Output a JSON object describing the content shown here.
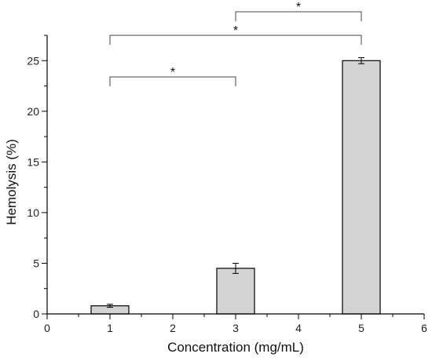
{
  "chart_data": {
    "type": "bar",
    "xlabel": "Concentration (mg/mL)",
    "ylabel": "Hemolysis (%)",
    "xlim": [
      0,
      6
    ],
    "ylim": [
      0,
      27.5
    ],
    "x_ticks": [
      "0",
      "1",
      "2",
      "3",
      "4",
      "5",
      "6"
    ],
    "y_ticks": [
      "0",
      "5",
      "10",
      "15",
      "20",
      "25"
    ],
    "bars": [
      {
        "x": 1,
        "value": 0.8,
        "error": 0.15
      },
      {
        "x": 3,
        "value": 4.5,
        "error": 0.5
      },
      {
        "x": 5,
        "value": 25.0,
        "error": 0.3
      }
    ],
    "significance": [
      {
        "from": 1,
        "to": 3,
        "label": "*"
      },
      {
        "from": 1,
        "to": 5,
        "label": "*"
      },
      {
        "from": 3,
        "to": 5,
        "label": "*"
      }
    ],
    "bar_color": "#d3d3d3",
    "grid": false,
    "legend": "none"
  }
}
